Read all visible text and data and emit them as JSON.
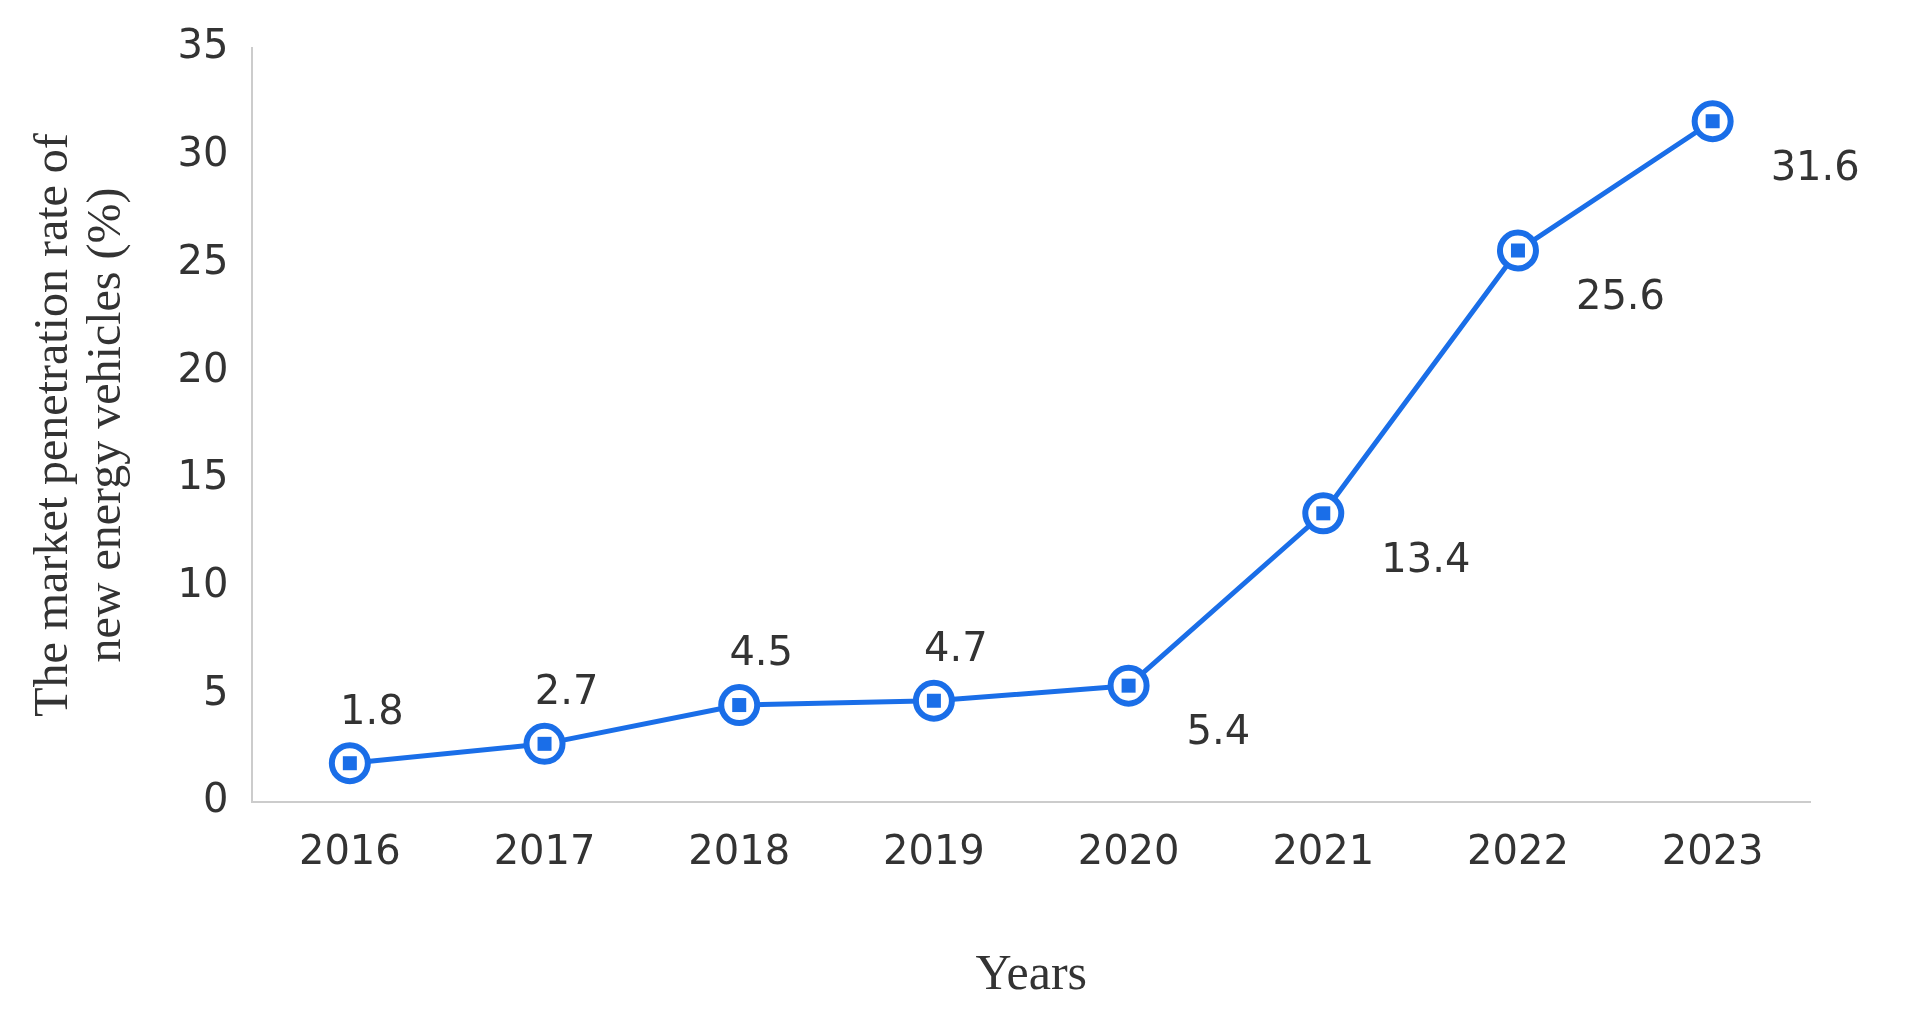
{
  "chart_data": {
    "type": "line",
    "xlabel": "Years",
    "ylabel": "The market penetration rate of\nnew energy vehicles (%)",
    "categories": [
      "2016",
      "2017",
      "2018",
      "2019",
      "2020",
      "2021",
      "2022",
      "2023"
    ],
    "series": [
      {
        "color": "#1a6ee8",
        "values": [
          1.8,
          2.7,
          4.5,
          4.7,
          5.4,
          13.4,
          25.6,
          31.6
        ]
      }
    ],
    "ylim": [
      0,
      35
    ],
    "yticks": [
      0,
      5,
      10,
      15,
      20,
      25,
      30,
      35
    ],
    "grid": false,
    "legend": false,
    "marker": "circle",
    "line_style": "solid",
    "data_labels": true
  }
}
